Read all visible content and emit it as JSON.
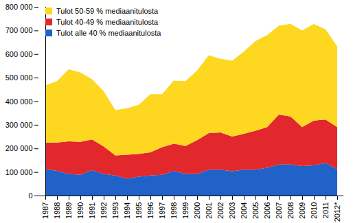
{
  "chart_data": {
    "type": "area",
    "stacked": true,
    "legend": "top-left",
    "grid": false,
    "categories": [
      "1987",
      "1988",
      "1989",
      "1990",
      "1991",
      "1992",
      "1993",
      "1994",
      "1995",
      "1996",
      "1997",
      "1998",
      "1999",
      "2000",
      "2001",
      "2002",
      "2003",
      "2004",
      "2005",
      "2006",
      "2007",
      "2008",
      "2009",
      "2010",
      "2011",
      "2012*"
    ],
    "series": [
      {
        "name": "Tulot alle 40 % mediaanitulosta",
        "color": "#2062c8",
        "values": [
          112000,
          105000,
          92000,
          88000,
          108000,
          92000,
          85000,
          72000,
          80000,
          85000,
          88000,
          105000,
          92000,
          92000,
          110000,
          110000,
          103000,
          110000,
          110000,
          118000,
          132000,
          132000,
          125000,
          128000,
          138000,
          112000
        ]
      },
      {
        "name": "Tulot 40-49 % mediaanitulosta",
        "color": "#e2282c",
        "values": [
          113000,
          120000,
          138000,
          140000,
          130000,
          116000,
          85000,
          101000,
          97000,
          98000,
          117000,
          115000,
          118000,
          143000,
          155000,
          158000,
          147000,
          152000,
          165000,
          172000,
          211000,
          203000,
          165000,
          190000,
          184000,
          178000
        ]
      },
      {
        "name": "Tulot 50-59 % mediaanitulosta",
        "color": "#fdd720",
        "values": [
          243000,
          260000,
          305000,
          294000,
          255000,
          234000,
          192000,
          197000,
          208000,
          247000,
          225000,
          267000,
          275000,
          295000,
          330000,
          312000,
          322000,
          348000,
          380000,
          390000,
          377000,
          393000,
          410000,
          409000,
          383000,
          343000
        ]
      }
    ],
    "ylim": [
      0,
      800000
    ],
    "yticks": [
      0,
      {
        "value": 100000,
        "label": "100 000"
      },
      {
        "value": 200000,
        "label": "200 000"
      },
      {
        "value": 300000,
        "label": "300 000"
      },
      {
        "value": 400000,
        "label": "400 000"
      },
      {
        "value": 500000,
        "label": "500 000"
      },
      {
        "value": 600000,
        "label": "600 000"
      },
      {
        "value": 700000,
        "label": "700 000"
      },
      {
        "value": 800000,
        "label": "800 000"
      }
    ]
  }
}
